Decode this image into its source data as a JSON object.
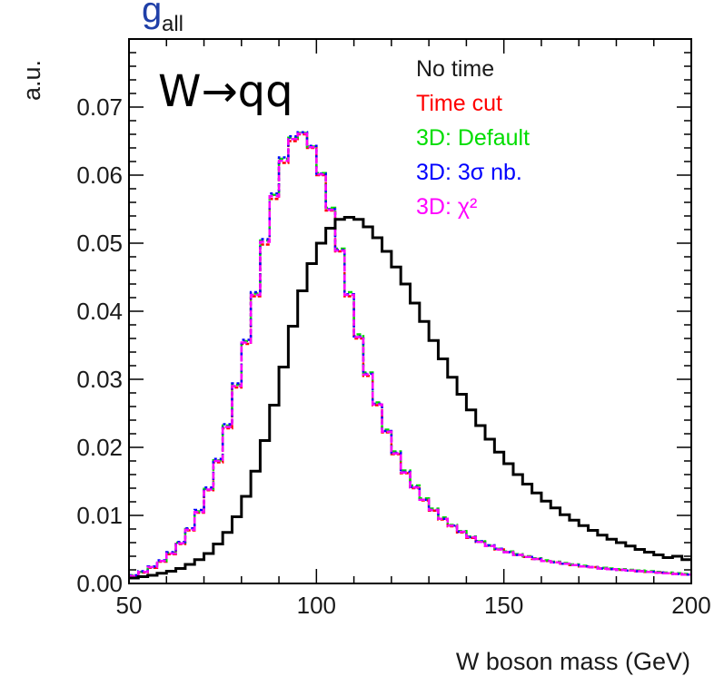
{
  "chart_data": {
    "type": "line",
    "title": "",
    "xlabel": "W boson mass (GeV)",
    "ylabel": "a.u.",
    "xlim": [
      50,
      200
    ],
    "ylim": [
      0,
      0.08
    ],
    "x_ticks": [
      "50",
      "100",
      "150",
      "200"
    ],
    "y_ticks": [
      "0.00",
      "0.01",
      "0.02",
      "0.03",
      "0.04",
      "0.05",
      "0.06",
      "0.07"
    ],
    "annotation": "W→qq",
    "top_fragment_main": "g",
    "top_fragment_sub": "all",
    "legend_position": "top-right",
    "bin_edges_start": 50,
    "bin_width": 2.5,
    "series": [
      {
        "name": "No time",
        "color": "#000000",
        "values": [
          0.0008,
          0.001,
          0.0012,
          0.0015,
          0.0018,
          0.0022,
          0.0028,
          0.0035,
          0.0044,
          0.0058,
          0.0075,
          0.0098,
          0.0128,
          0.0165,
          0.021,
          0.0262,
          0.0318,
          0.0378,
          0.043,
          0.047,
          0.05,
          0.0522,
          0.0535,
          0.0538,
          0.0535,
          0.0524,
          0.0508,
          0.0488,
          0.0465,
          0.044,
          0.0412,
          0.0385,
          0.0357,
          0.033,
          0.0303,
          0.0278,
          0.0255,
          0.0232,
          0.0212,
          0.0193,
          0.0176,
          0.016,
          0.0146,
          0.0133,
          0.0121,
          0.0111,
          0.0101,
          0.0093,
          0.0085,
          0.0078,
          0.0071,
          0.0065,
          0.006,
          0.0055,
          0.005,
          0.0046,
          0.0042,
          0.0038,
          0.004,
          0.0035
        ]
      },
      {
        "name": "Time cut",
        "color": "#ff0000",
        "values": [
          0.0011,
          0.0016,
          0.0023,
          0.0032,
          0.0043,
          0.0058,
          0.0078,
          0.0104,
          0.0137,
          0.0178,
          0.0228,
          0.0288,
          0.0352,
          0.0422,
          0.0498,
          0.0565,
          0.0618,
          0.065,
          0.066,
          0.064,
          0.06,
          0.0548,
          0.0488,
          0.0422,
          0.036,
          0.0305,
          0.0262,
          0.0222,
          0.019,
          0.0162,
          0.014,
          0.0122,
          0.0107,
          0.0094,
          0.0084,
          0.0075,
          0.0067,
          0.0061,
          0.0055,
          0.005,
          0.0046,
          0.0042,
          0.0039,
          0.0036,
          0.0033,
          0.0031,
          0.0029,
          0.0027,
          0.0025,
          0.0024,
          0.0022,
          0.0021,
          0.002,
          0.0019,
          0.0018,
          0.0017,
          0.0016,
          0.0015,
          0.0014,
          0.0013
        ]
      },
      {
        "name": "3D: Default",
        "color": "#00dd00",
        "values": [
          0.0012,
          0.0017,
          0.0024,
          0.0033,
          0.0045,
          0.006,
          0.008,
          0.0106,
          0.0139,
          0.0181,
          0.0232,
          0.0292,
          0.0356,
          0.0426,
          0.0504,
          0.0571,
          0.0624,
          0.0655,
          0.0662,
          0.0642,
          0.0603,
          0.0552,
          0.0492,
          0.0428,
          0.0366,
          0.031,
          0.0266,
          0.0226,
          0.0194,
          0.0166,
          0.0144,
          0.0125,
          0.011,
          0.0097,
          0.0086,
          0.0077,
          0.0069,
          0.0062,
          0.0056,
          0.0051,
          0.0047,
          0.0043,
          0.004,
          0.0037,
          0.0034,
          0.0032,
          0.003,
          0.0028,
          0.0026,
          0.0024,
          0.0023,
          0.0022,
          0.0021,
          0.002,
          0.0019,
          0.0018,
          0.0017,
          0.0016,
          0.0015,
          0.0014
        ]
      },
      {
        "name": "3D: 3σ nb.",
        "color": "#0000ff",
        "values": [
          0.0012,
          0.0018,
          0.0025,
          0.0034,
          0.0046,
          0.0061,
          0.0081,
          0.0108,
          0.0141,
          0.0183,
          0.0234,
          0.0294,
          0.0358,
          0.0428,
          0.0506,
          0.0573,
          0.0626,
          0.0657,
          0.0663,
          0.0643,
          0.0602,
          0.055,
          0.049,
          0.0425,
          0.0363,
          0.0308,
          0.0264,
          0.0224,
          0.0192,
          0.0164,
          0.0142,
          0.0123,
          0.0108,
          0.0095,
          0.0085,
          0.0076,
          0.0068,
          0.0062,
          0.0056,
          0.0051,
          0.0046,
          0.0042,
          0.0039,
          0.0036,
          0.0033,
          0.0031,
          0.0029,
          0.0027,
          0.0025,
          0.0024,
          0.0022,
          0.0021,
          0.002,
          0.0019,
          0.0018,
          0.0017,
          0.0016,
          0.0015,
          0.0014,
          0.0013
        ]
      },
      {
        "name": "3D: χ²",
        "color": "#ff00ff",
        "values": [
          0.0011,
          0.0017,
          0.0024,
          0.0033,
          0.0044,
          0.0059,
          0.0079,
          0.0105,
          0.0138,
          0.018,
          0.023,
          0.029,
          0.0354,
          0.0424,
          0.0502,
          0.0569,
          0.0621,
          0.0653,
          0.0661,
          0.0641,
          0.0601,
          0.0549,
          0.0489,
          0.0424,
          0.0362,
          0.0307,
          0.0263,
          0.0223,
          0.0191,
          0.0163,
          0.0141,
          0.0123,
          0.0108,
          0.0095,
          0.0085,
          0.0076,
          0.0068,
          0.0061,
          0.0055,
          0.005,
          0.0046,
          0.0042,
          0.0039,
          0.0036,
          0.0033,
          0.0031,
          0.0029,
          0.0027,
          0.0025,
          0.0024,
          0.0022,
          0.0021,
          0.002,
          0.0019,
          0.0018,
          0.0017,
          0.0016,
          0.0015,
          0.0014,
          0.0013
        ]
      }
    ]
  }
}
